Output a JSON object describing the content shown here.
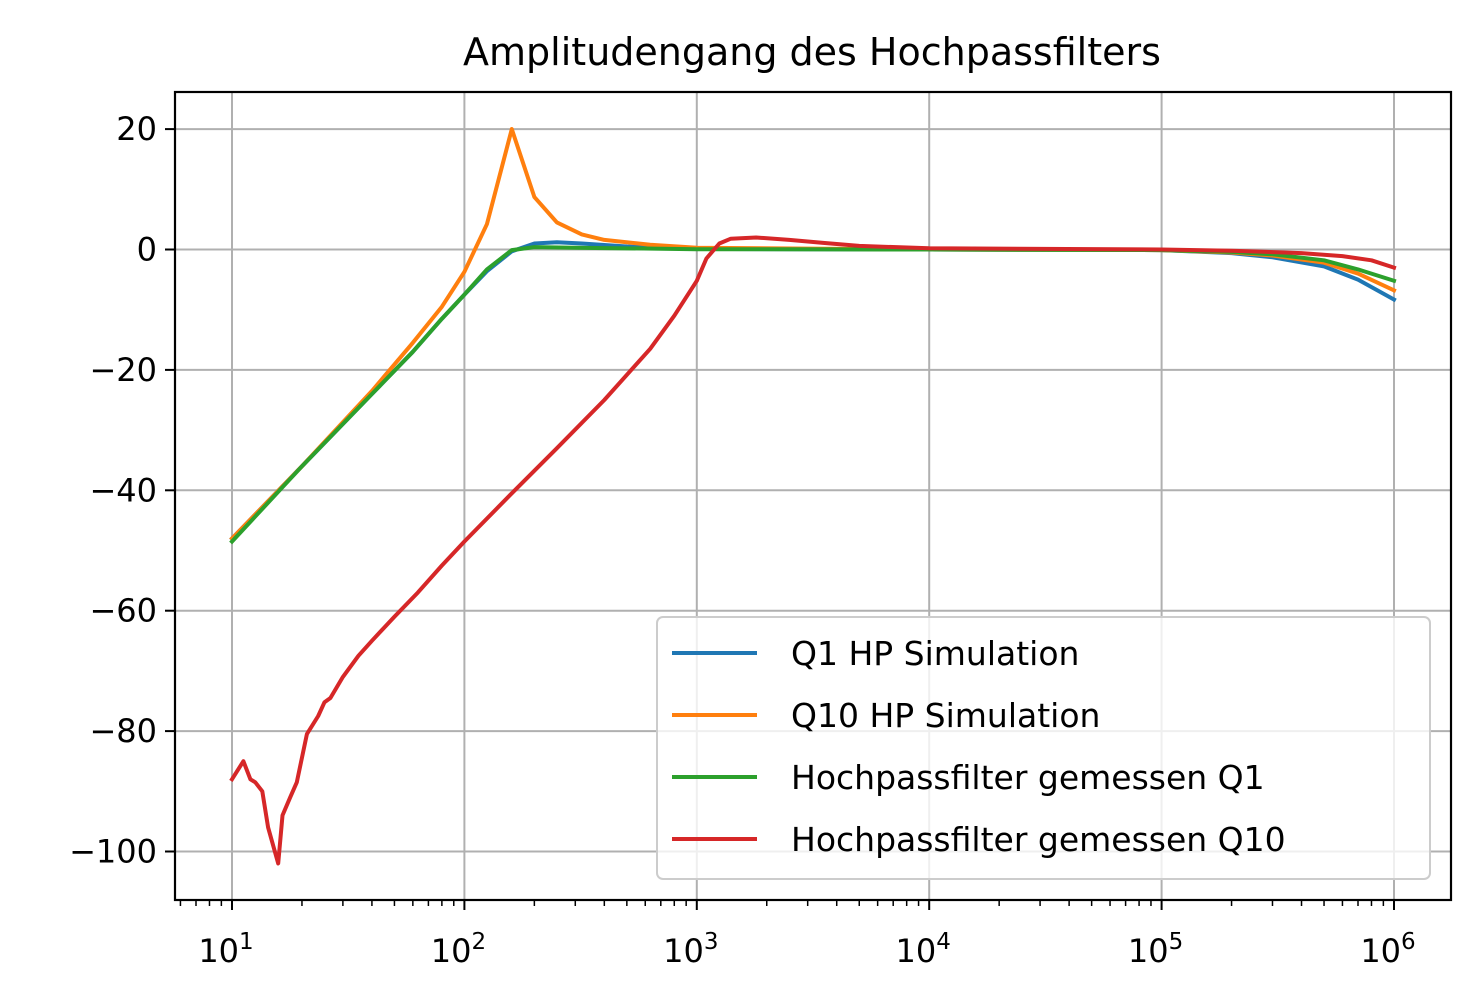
{
  "chart_data": {
    "type": "line",
    "title": "Amplitudengang des Hochpassfilters",
    "xlabel": "",
    "ylabel": "",
    "xscale": "log",
    "xlim": [
      5.7,
      1700000
    ],
    "ylim": [
      -108,
      26
    ],
    "grid": true,
    "legend_position": "lower right",
    "x_ticks": [
      {
        "value": 10,
        "base": "10",
        "exp": "1"
      },
      {
        "value": 100,
        "base": "10",
        "exp": "2"
      },
      {
        "value": 1000,
        "base": "10",
        "exp": "3"
      },
      {
        "value": 10000,
        "base": "10",
        "exp": "4"
      },
      {
        "value": 100000,
        "base": "10",
        "exp": "5"
      },
      {
        "value": 1000000,
        "base": "10",
        "exp": "6"
      }
    ],
    "y_ticks": [
      {
        "value": 20,
        "label": "20"
      },
      {
        "value": 0,
        "label": "0"
      },
      {
        "value": -20,
        "label": "−20"
      },
      {
        "value": -40,
        "label": "−40"
      },
      {
        "value": -60,
        "label": "−60"
      },
      {
        "value": -80,
        "label": "−80"
      },
      {
        "value": -100,
        "label": "−100"
      }
    ],
    "series": [
      {
        "name": "Q1 HP Simulation",
        "color": "#1f77b4",
        "points": [
          [
            10,
            -48
          ],
          [
            20,
            -36
          ],
          [
            40,
            -24
          ],
          [
            60,
            -17
          ],
          [
            80,
            -11.5
          ],
          [
            100,
            -7.5
          ],
          [
            125,
            -3.6
          ],
          [
            160,
            -0.3
          ],
          [
            200,
            1.0
          ],
          [
            250,
            1.2
          ],
          [
            320,
            1.0
          ],
          [
            500,
            0.5
          ],
          [
            1000,
            0.1
          ],
          [
            10000,
            0
          ],
          [
            100000,
            -0.1
          ],
          [
            200000,
            -0.6
          ],
          [
            300000,
            -1.3
          ],
          [
            500000,
            -2.8
          ],
          [
            700000,
            -5.0
          ],
          [
            1000000,
            -8.3
          ]
        ]
      },
      {
        "name": "Q10 HP Simulation",
        "color": "#ff7f0e",
        "points": [
          [
            10,
            -48
          ],
          [
            20,
            -36
          ],
          [
            40,
            -23.5
          ],
          [
            60,
            -15.5
          ],
          [
            80,
            -9.5
          ],
          [
            100,
            -3.7
          ],
          [
            125,
            4.2
          ],
          [
            160,
            20
          ],
          [
            200,
            8.7
          ],
          [
            250,
            4.5
          ],
          [
            320,
            2.5
          ],
          [
            400,
            1.6
          ],
          [
            630,
            0.8
          ],
          [
            1000,
            0.3
          ],
          [
            10000,
            0
          ],
          [
            100000,
            -0.1
          ],
          [
            200000,
            -0.5
          ],
          [
            300000,
            -1.0
          ],
          [
            500000,
            -2.2
          ],
          [
            700000,
            -4.0
          ],
          [
            1000000,
            -6.8
          ]
        ]
      },
      {
        "name": "Hochpassfilter gemessen Q1",
        "color": "#2ca02c",
        "points": [
          [
            10,
            -48.5
          ],
          [
            20,
            -36
          ],
          [
            40,
            -24
          ],
          [
            60,
            -17
          ],
          [
            80,
            -11.5
          ],
          [
            100,
            -7.5
          ],
          [
            125,
            -3.3
          ],
          [
            160,
            -0.1
          ],
          [
            200,
            0.4
          ],
          [
            300,
            0.3
          ],
          [
            1000,
            0.05
          ],
          [
            10000,
            0
          ],
          [
            100000,
            -0.1
          ],
          [
            200000,
            -0.4
          ],
          [
            300000,
            -0.8
          ],
          [
            500000,
            -1.8
          ],
          [
            700000,
            -3.3
          ],
          [
            1000000,
            -5.2
          ]
        ]
      },
      {
        "name": "Hochpassfilter gemessen Q10",
        "color": "#d62728",
        "points": [
          [
            10,
            -88
          ],
          [
            11.2,
            -85
          ],
          [
            12,
            -88
          ],
          [
            12.6,
            -88.5
          ],
          [
            13.5,
            -90
          ],
          [
            14.3,
            -96
          ],
          [
            15.8,
            -102
          ],
          [
            16.5,
            -94
          ],
          [
            17.8,
            -91
          ],
          [
            19,
            -88.5
          ],
          [
            21,
            -80.5
          ],
          [
            23.5,
            -77.5
          ],
          [
            25,
            -75.2
          ],
          [
            26.5,
            -74.5
          ],
          [
            30,
            -71
          ],
          [
            35,
            -67.5
          ],
          [
            40,
            -65
          ],
          [
            50,
            -61
          ],
          [
            63,
            -57
          ],
          [
            80,
            -52.5
          ],
          [
            100,
            -48.5
          ],
          [
            160,
            -40.5
          ],
          [
            250,
            -33
          ],
          [
            400,
            -25
          ],
          [
            630,
            -16.5
          ],
          [
            800,
            -11
          ],
          [
            1000,
            -5.2
          ],
          [
            1100,
            -1.5
          ],
          [
            1250,
            1.0
          ],
          [
            1400,
            1.8
          ],
          [
            1800,
            2.0
          ],
          [
            2500,
            1.6
          ],
          [
            3500,
            1.1
          ],
          [
            5000,
            0.6
          ],
          [
            10000,
            0.2
          ],
          [
            100000,
            0
          ],
          [
            200000,
            -0.2
          ],
          [
            400000,
            -0.6
          ],
          [
            600000,
            -1.1
          ],
          [
            800000,
            -1.8
          ],
          [
            1000000,
            -3.0
          ]
        ]
      }
    ]
  }
}
